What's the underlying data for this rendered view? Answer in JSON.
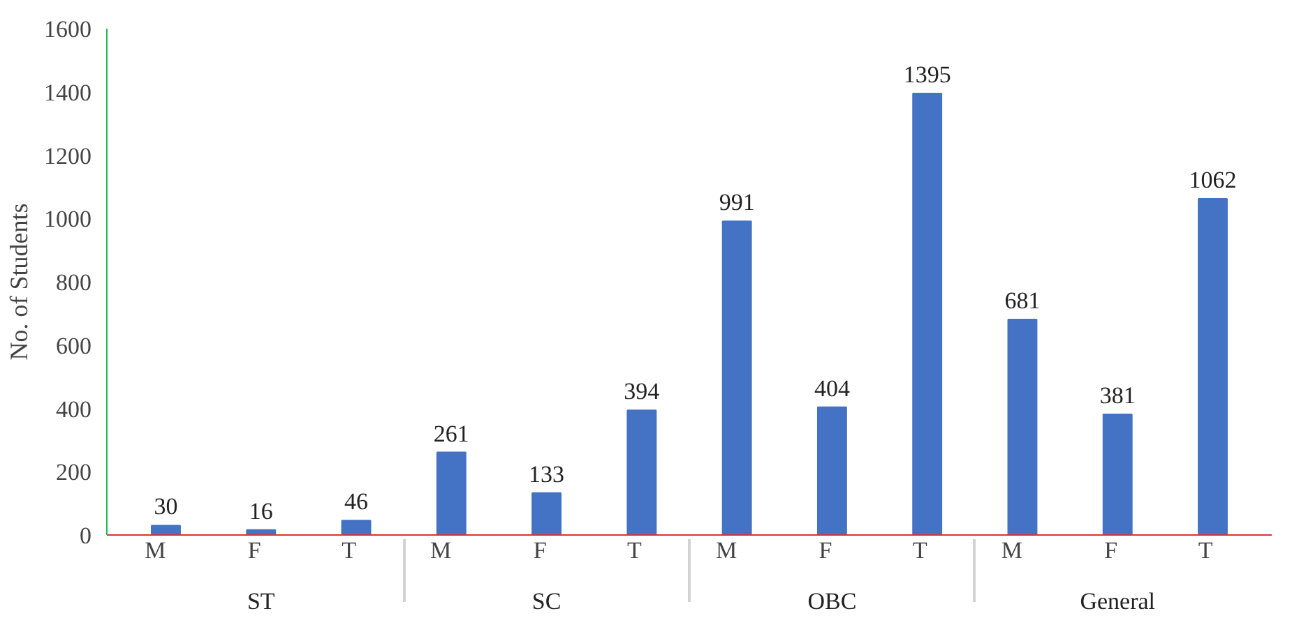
{
  "chart_data": {
    "type": "bar",
    "ylabel": "No. of Students",
    "categories": [
      "M",
      "F",
      "T",
      "M",
      "F",
      "T",
      "M",
      "F",
      "T",
      "M",
      "F",
      "T"
    ],
    "annotations": [
      "ST",
      "SC",
      "OBC",
      "General"
    ],
    "values": [
      30,
      16,
      46,
      261,
      133,
      394,
      991,
      404,
      1395,
      681,
      381,
      1062
    ],
    "color": "#4472c4",
    "ylim": [
      0,
      1600
    ],
    "yticks": [
      0,
      200,
      400,
      600,
      800,
      1000,
      1200,
      1400,
      1600
    ],
    "data_labels": true,
    "grid": false
  }
}
